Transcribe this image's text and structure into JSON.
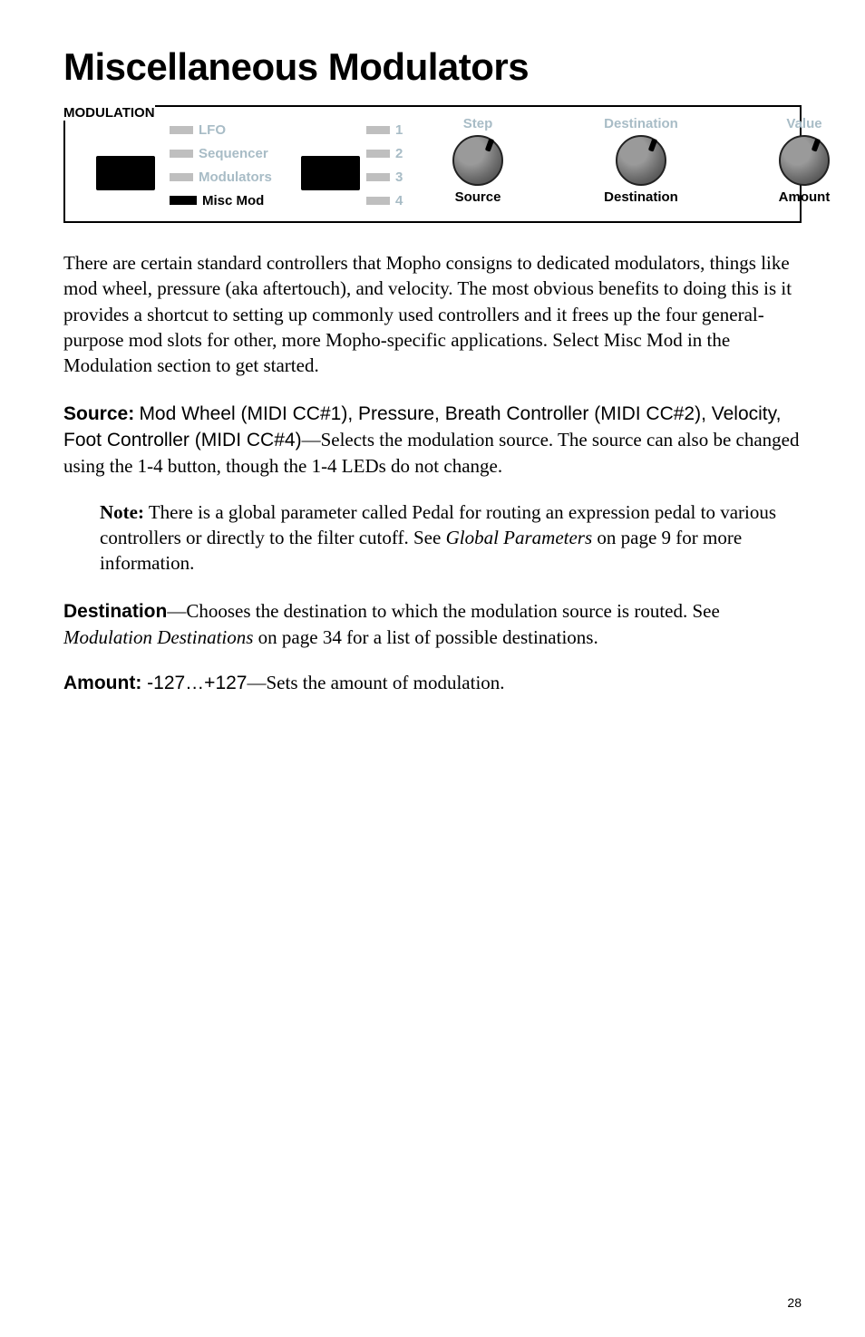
{
  "title": "Miscellaneous Modulators",
  "panel": {
    "section_label": "MODULATION",
    "modes": [
      {
        "label": "LFO",
        "active": false
      },
      {
        "label": "Sequencer",
        "active": false
      },
      {
        "label": "Modulators",
        "active": false
      },
      {
        "label": "Misc Mod",
        "active": true
      }
    ],
    "nums": [
      "1",
      "2",
      "3",
      "4"
    ],
    "knob_top_labels": [
      "Step",
      "Destination",
      "Value"
    ],
    "knob_bottom_labels": [
      "Source",
      "Destination",
      "Amount"
    ]
  },
  "intro": "There are certain standard controllers that Mopho consigns to dedicated modulators, things like mod wheel, pressure (aka aftertouch), and velocity. The most obvious benefits to doing this is it provides a shortcut to setting up commonly used controllers and it frees up the four general-purpose mod slots for other, more Mopho-specific applications. Select Misc Mod in the Modulation section to get started.",
  "source": {
    "label": "Source:",
    "vals": "Mod Wheel (MIDI CC#1), Pressure, Breath Controller (MIDI CC#2), Velocity, Foot Controller (MIDI CC#4)",
    "desc": "—Selects the modulation source. The source can also be changed using the 1-4 button, though the 1-4 LEDs do not change."
  },
  "note": {
    "label": "Note:",
    "text_a": " There is a global parameter called Pedal for routing an expression pedal to various controllers or directly to the filter cutoff. See ",
    "em": "Global Parameters",
    "text_b": " on page 9 for more information."
  },
  "destination": {
    "label": "Destination",
    "text_a": "—Chooses the destination to which the modulation source is routed. See ",
    "em": "Modulation Destinations",
    "text_b": " on page 34 for a list of possible destinations."
  },
  "amount": {
    "label": "Amount:",
    "vals": " -127…+127",
    "desc": "—Sets the amount of modulation."
  },
  "page_num": "28"
}
